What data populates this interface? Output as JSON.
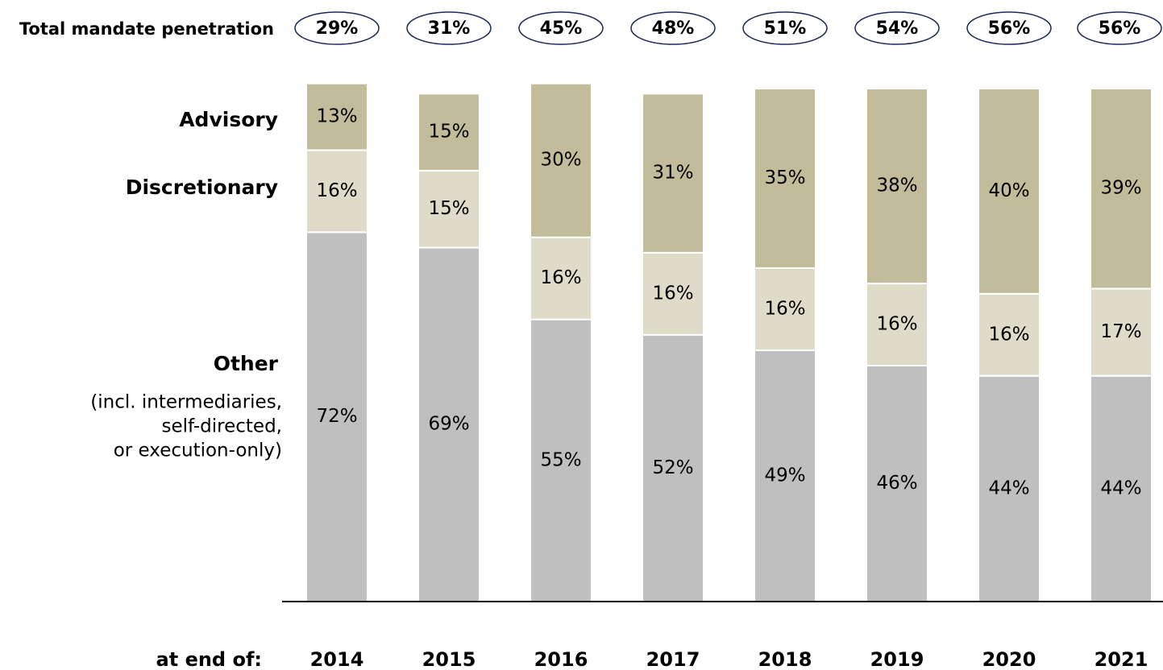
{
  "chart_data": {
    "type": "stacked_bar",
    "categories": [
      "2014",
      "2015",
      "2016",
      "2017",
      "2018",
      "2019",
      "2020",
      "2021"
    ],
    "x_label": "at end of:",
    "ylim": [
      0,
      100
    ],
    "series": [
      {
        "name": "Other",
        "color": "#bfbfbf",
        "values": [
          72,
          69,
          55,
          52,
          49,
          46,
          44,
          44
        ],
        "value_labels": [
          "72%",
          "69%",
          "55%",
          "52%",
          "49%",
          "46%",
          "44%",
          "44%"
        ]
      },
      {
        "name": "Discretionary",
        "color": "#dedcc9",
        "values": [
          16,
          15,
          16,
          16,
          16,
          16,
          16,
          17
        ],
        "value_labels": [
          "16%",
          "15%",
          "16%",
          "16%",
          "16%",
          "16%",
          "16%",
          "17%"
        ]
      },
      {
        "name": "Advisory",
        "color": "#c2bc9a",
        "values": [
          13,
          15,
          30,
          31,
          35,
          38,
          40,
          39
        ],
        "value_labels": [
          "13%",
          "15%",
          "30%",
          "31%",
          "35%",
          "38%",
          "40%",
          "39%"
        ]
      }
    ],
    "series_note": [
      "(incl. intermediaries,",
      "self-directed,",
      "or execution-only)"
    ],
    "penetration": {
      "name": "Total mandate penetration",
      "values": [
        29,
        31,
        45,
        48,
        51,
        54,
        56,
        56
      ],
      "value_labels": [
        "29%",
        "31%",
        "45%",
        "48%",
        "51%",
        "54%",
        "56%",
        "56%"
      ]
    }
  }
}
